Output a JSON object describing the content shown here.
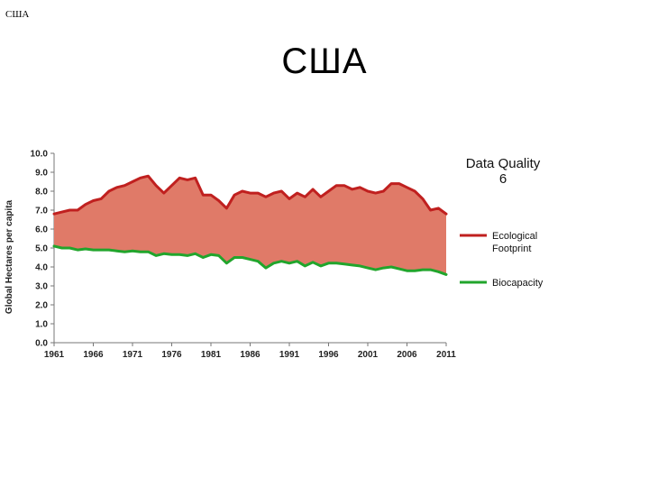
{
  "page": {
    "corner_title": "США",
    "title": "США"
  },
  "chart_data": {
    "type": "area",
    "title": "",
    "xlabel": "",
    "ylabel": "Global Hectares per capita",
    "ylim": [
      0,
      10
    ],
    "yticks": [
      "0.0",
      "1.0",
      "2.0",
      "3.0",
      "4.0",
      "5.0",
      "6.0",
      "7.0",
      "8.0",
      "9.0",
      "10.0"
    ],
    "xlim": [
      1961,
      2011
    ],
    "xticks": [
      "1961",
      "1966",
      "1971",
      "1976",
      "1981",
      "1986",
      "1991",
      "1996",
      "2001",
      "2006",
      "2011"
    ],
    "data_quality": {
      "line1": "Data Quality",
      "line2": "6"
    },
    "legend": [
      {
        "key": "footprint",
        "lines": [
          "Ecological",
          "Footprint"
        ],
        "color": "#c0201f"
      },
      {
        "key": "biocapacity",
        "lines": [
          "Biocapacity"
        ],
        "color": "#21a52c"
      }
    ],
    "fill_color": "#e07a68",
    "x": [
      1961,
      1962,
      1963,
      1964,
      1965,
      1966,
      1967,
      1968,
      1969,
      1970,
      1971,
      1972,
      1973,
      1974,
      1975,
      1976,
      1977,
      1978,
      1979,
      1980,
      1981,
      1982,
      1983,
      1984,
      1985,
      1986,
      1987,
      1988,
      1989,
      1990,
      1991,
      1992,
      1993,
      1994,
      1995,
      1996,
      1997,
      1998,
      1999,
      2000,
      2001,
      2002,
      2003,
      2004,
      2005,
      2006,
      2007,
      2008,
      2009,
      2010,
      2011
    ],
    "series": [
      {
        "name": "Ecological Footprint",
        "key": "footprint",
        "values": [
          6.8,
          6.9,
          7.0,
          7.0,
          7.3,
          7.5,
          7.6,
          8.0,
          8.2,
          8.3,
          8.5,
          8.7,
          8.8,
          8.3,
          7.9,
          8.3,
          8.7,
          8.6,
          8.7,
          7.8,
          7.8,
          7.5,
          7.1,
          7.8,
          8.0,
          7.9,
          7.9,
          7.7,
          7.9,
          8.0,
          7.6,
          7.9,
          7.7,
          8.1,
          7.7,
          8.0,
          8.3,
          8.3,
          8.1,
          8.2,
          8.0,
          7.9,
          8.0,
          8.4,
          8.4,
          8.2,
          8.0,
          7.6,
          7.0,
          7.1,
          6.8
        ]
      },
      {
        "name": "Biocapacity",
        "key": "biocapacity",
        "values": [
          5.1,
          5.0,
          5.0,
          4.9,
          4.95,
          4.9,
          4.9,
          4.9,
          4.85,
          4.8,
          4.85,
          4.8,
          4.8,
          4.6,
          4.7,
          4.65,
          4.65,
          4.6,
          4.7,
          4.5,
          4.65,
          4.6,
          4.2,
          4.5,
          4.5,
          4.4,
          4.3,
          3.95,
          4.2,
          4.3,
          4.2,
          4.3,
          4.05,
          4.25,
          4.05,
          4.2,
          4.2,
          4.15,
          4.1,
          4.05,
          3.95,
          3.85,
          3.95,
          4.0,
          3.9,
          3.8,
          3.8,
          3.85,
          3.85,
          3.75,
          3.6
        ]
      }
    ]
  }
}
